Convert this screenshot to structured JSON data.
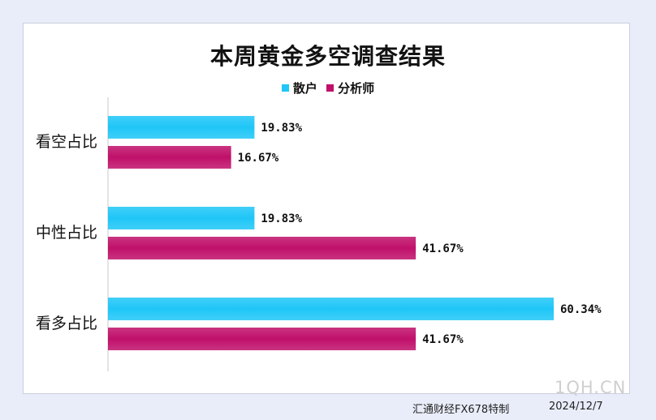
{
  "chart_data": {
    "type": "bar",
    "orientation": "horizontal",
    "title": "本周黄金多空调查结果",
    "categories": [
      "看空占比",
      "中性占比",
      "看多占比"
    ],
    "series": [
      {
        "name": "散户",
        "values": [
          19.83,
          19.83,
          60.34
        ],
        "color": "#1fc6f7"
      },
      {
        "name": "分析师",
        "values": [
          16.67,
          41.67,
          41.67
        ],
        "color": "#c0106a"
      }
    ],
    "value_labels": [
      [
        "19.83%",
        "19.83%",
        "60.34%"
      ],
      [
        "16.67%",
        "41.67%",
        "41.67%"
      ]
    ],
    "xlim": [
      0,
      70
    ],
    "legend_position": "top-center",
    "grid": false
  },
  "footer": {
    "credit": "汇通财经FX678特制",
    "date": "2024/12/7"
  },
  "watermark": "1QH.CN"
}
